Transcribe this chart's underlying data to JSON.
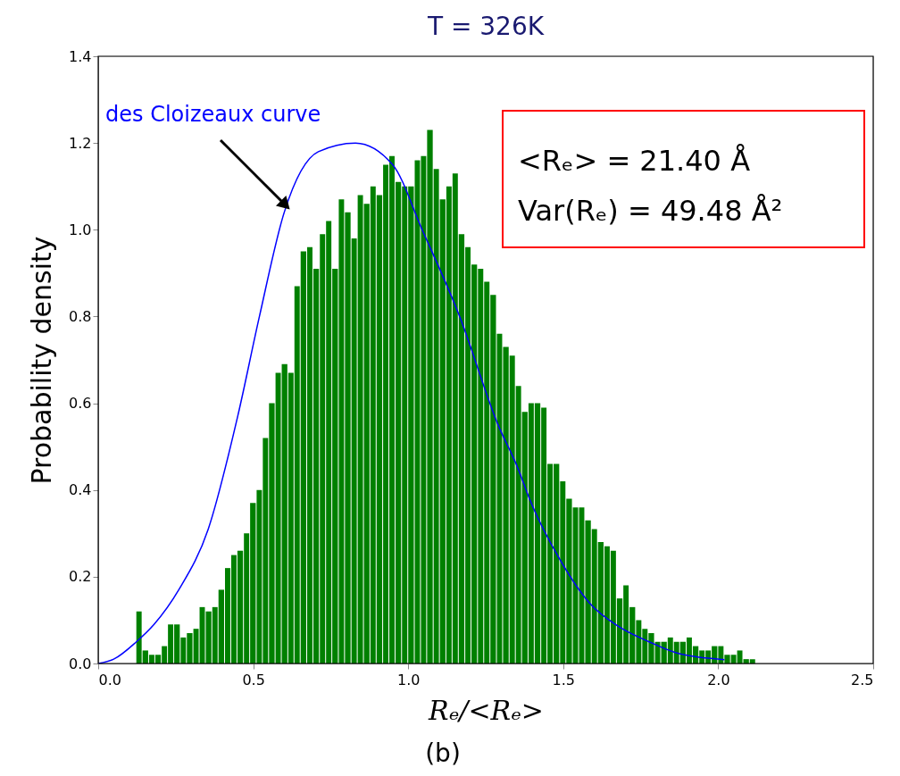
{
  "chart_data": {
    "type": "histogram",
    "title": "T = 326K",
    "xlabel": "Rₑ/<Rₑ>",
    "ylabel": "Probability density",
    "annotations": [
      "<Rₑ> = 21.40 Å",
      "Var(Rₑ) = 49.48 Å²",
      "(b)"
    ],
    "xlim": [
      0,
      2.5
    ],
    "ylim": [
      0,
      1.4
    ],
    "xticks": [
      {
        "value": 0,
        "label": "0.0"
      },
      0.5,
      {
        "value": 1,
        "label": "1.0"
      },
      1.5,
      {
        "value": 2,
        "label": "2.0"
      },
      2.5
    ],
    "yticks": [
      {
        "value": 0,
        "label": "0.0"
      },
      0.2,
      0.4,
      0.6,
      0.8,
      {
        "value": 1,
        "label": "1.0"
      },
      1.2,
      1.4
    ],
    "grid": false,
    "bins": [
      0.123,
      0.143,
      0.164,
      0.184,
      0.205,
      0.225,
      0.245,
      0.266,
      0.286,
      0.307,
      0.327,
      0.347,
      0.368,
      0.388,
      0.409,
      0.429,
      0.449,
      0.47,
      0.49,
      0.511,
      0.531,
      0.551,
      0.572,
      0.592,
      0.613,
      0.633,
      0.653,
      0.674,
      0.694,
      0.715,
      0.735,
      0.755,
      0.776,
      0.796,
      0.817,
      0.837,
      0.857,
      0.878,
      0.898,
      0.919,
      0.939,
      0.959,
      0.98,
      1.0,
      1.021,
      1.041,
      1.061,
      1.082,
      1.102,
      1.123,
      1.143,
      1.163,
      1.184,
      1.204,
      1.225,
      1.245,
      1.265,
      1.286,
      1.306,
      1.327,
      1.347,
      1.367,
      1.388,
      1.408,
      1.429,
      1.449,
      1.469,
      1.49,
      1.51,
      1.531,
      1.551,
      1.571,
      1.592,
      1.612,
      1.633,
      1.653,
      1.673,
      1.694,
      1.714,
      1.735,
      1.755,
      1.775,
      1.796,
      1.816,
      1.837,
      1.857,
      1.877,
      1.898,
      1.918,
      1.939,
      1.959,
      1.979,
      2.0,
      2.02,
      2.041,
      2.061,
      2.081,
      2.102,
      2.122,
      2.143,
      2.163
    ],
    "series": [
      {
        "type": "histogram",
        "color": "#008000",
        "values": [
          0.12,
          0.03,
          0.02,
          0.02,
          0.04,
          0.09,
          0.09,
          0.06,
          0.07,
          0.08,
          0.13,
          0.12,
          0.13,
          0.17,
          0.22,
          0.25,
          0.26,
          0.3,
          0.37,
          0.4,
          0.52,
          0.6,
          0.67,
          0.69,
          0.67,
          0.87,
          0.95,
          0.96,
          0.91,
          0.99,
          1.02,
          0.91,
          1.07,
          1.04,
          0.98,
          1.08,
          1.06,
          1.1,
          1.08,
          1.15,
          1.17,
          1.11,
          1.1,
          1.1,
          1.16,
          1.17,
          1.23,
          1.14,
          1.07,
          1.1,
          1.13,
          0.99,
          0.96,
          0.92,
          0.91,
          0.88,
          0.85,
          0.76,
          0.73,
          0.71,
          0.64,
          0.58,
          0.6,
          0.6,
          0.59,
          0.46,
          0.46,
          0.42,
          0.38,
          0.36,
          0.36,
          0.33,
          0.31,
          0.28,
          0.27,
          0.26,
          0.15,
          0.18,
          0.13,
          0.1,
          0.08,
          0.07,
          0.05,
          0.05,
          0.06,
          0.05,
          0.05,
          0.06,
          0.04,
          0.03,
          0.03,
          0.04,
          0.04,
          0.02,
          0.02,
          0.03,
          0.01,
          0.01,
          0,
          null
        ]
      },
      {
        "type": "line",
        "name": "des Cloizeaux curve",
        "color": "#0000ff",
        "x": [
          0,
          0.05,
          0.123,
          0.18,
          0.26,
          0.355,
          0.45,
          0.52,
          0.6,
          0.71,
          0.83,
          0.95,
          1.045,
          1.166,
          1.29,
          1.354,
          1.391,
          1.489,
          1.584,
          1.679,
          1.777,
          1.872,
          2.02
        ],
        "values": [
          0,
          0.01,
          0.05,
          0.09,
          0.17,
          0.31,
          0.57,
          0.8,
          1.04,
          1.18,
          1.2,
          1.15,
          1.0,
          0.8,
          0.55,
          0.45,
          0.38,
          0.24,
          0.14,
          0.085,
          0.05,
          0.023,
          0.009
        ]
      }
    ]
  }
}
